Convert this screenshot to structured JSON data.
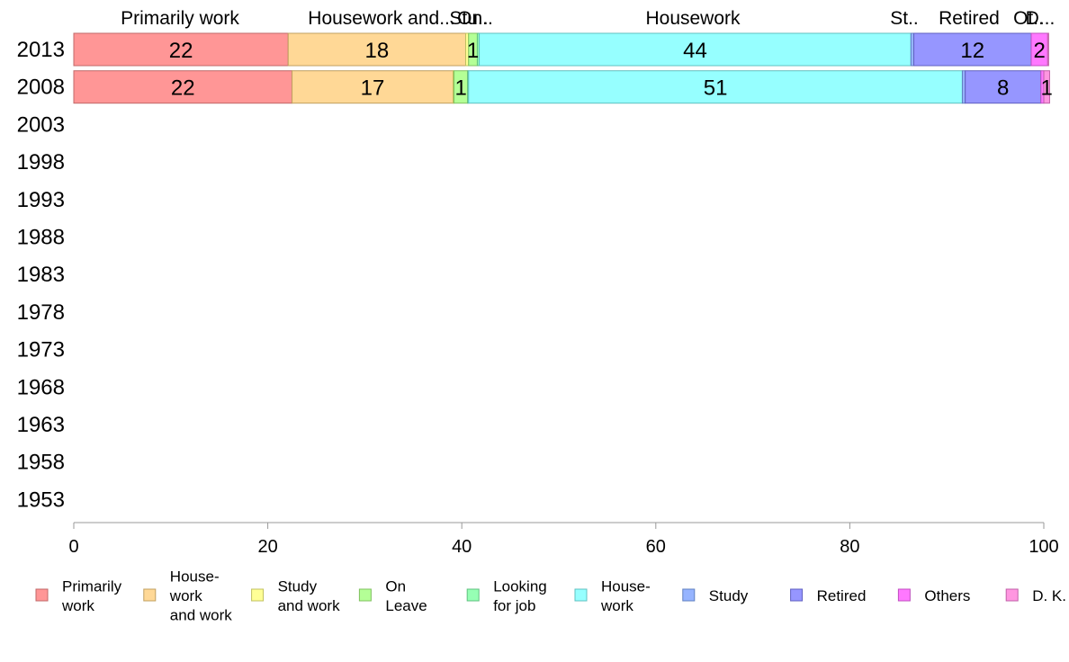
{
  "chart_data": {
    "type": "bar",
    "orientation": "horizontal",
    "stacked": true,
    "title": "",
    "xlabel": "",
    "ylabel": "",
    "xlim": [
      0,
      100
    ],
    "x_ticks": [
      "0",
      "20",
      "40",
      "60",
      "80",
      "100"
    ],
    "categories": [
      "2013",
      "2008",
      "2003",
      "1998",
      "1993",
      "1988",
      "1983",
      "1978",
      "1973",
      "1968",
      "1963",
      "1958",
      "1953"
    ],
    "top_labels": [
      "Primarily work",
      "Housework and...",
      "Stu..",
      "On..",
      "Housework",
      "St..",
      "Retired",
      "Ot..",
      "D..."
    ],
    "grid": false,
    "legend_position": "bottom",
    "series": [
      {
        "name": "Primarily work",
        "legend_label": "Primarily\nwork",
        "color": "#ff9696",
        "stroke": "#c06868",
        "values": [
          22.1,
          22.5,
          null,
          null,
          null,
          null,
          null,
          null,
          null,
          null,
          null,
          null,
          null
        ],
        "data_labels": [
          "22",
          "22",
          "",
          "",
          "",
          "",
          "",
          "",
          "",
          "",
          "",
          "",
          ""
        ]
      },
      {
        "name": "Housework and work",
        "legend_label": "House-\nwork\nand work",
        "color": "#ffd896",
        "stroke": "#c0a060",
        "values": [
          18.3,
          16.6,
          null,
          null,
          null,
          null,
          null,
          null,
          null,
          null,
          null,
          null,
          null
        ],
        "data_labels": [
          "18",
          "17",
          "",
          "",
          "",
          "",
          "",
          "",
          "",
          "",
          "",
          "",
          ""
        ]
      },
      {
        "name": "Study and work",
        "legend_label": "Study\nand work",
        "color": "#ffff96",
        "stroke": "#c0c060",
        "values": [
          0.3,
          0.1,
          null,
          null,
          null,
          null,
          null,
          null,
          null,
          null,
          null,
          null,
          null
        ],
        "data_labels": [
          "",
          "",
          "",
          "",
          "",
          "",
          "",
          "",
          "",
          "",
          "",
          "",
          ""
        ]
      },
      {
        "name": "On Leave",
        "legend_label": "On\nLeave",
        "color": "#b4ff96",
        "stroke": "#80c060",
        "values": [
          0.9,
          1.4,
          null,
          null,
          null,
          null,
          null,
          null,
          null,
          null,
          null,
          null,
          null
        ],
        "data_labels": [
          "1",
          "1",
          "",
          "",
          "",
          "",
          "",
          "",
          "",
          "",
          "",
          "",
          ""
        ]
      },
      {
        "name": "Looking for job",
        "legend_label": "Looking\nfor job",
        "color": "#96ffb4",
        "stroke": "#60c080",
        "values": [
          0.2,
          0.1,
          null,
          null,
          null,
          null,
          null,
          null,
          null,
          null,
          null,
          null,
          null
        ],
        "data_labels": [
          "",
          "",
          "",
          "",
          "",
          "",
          "",
          "",
          "",
          "",
          "",
          "",
          ""
        ]
      },
      {
        "name": "Housework",
        "legend_label": "House-\nwork",
        "color": "#96ffff",
        "stroke": "#60c0c0",
        "values": [
          44.5,
          50.9,
          null,
          null,
          null,
          null,
          null,
          null,
          null,
          null,
          null,
          null,
          null
        ],
        "data_labels": [
          "44",
          "51",
          "",
          "",
          "",
          "",
          "",
          "",
          "",
          "",
          "",
          "",
          ""
        ]
      },
      {
        "name": "Study",
        "legend_label": "Study",
        "color": "#96b4ff",
        "stroke": "#6080c0",
        "values": [
          0.3,
          0.3,
          null,
          null,
          null,
          null,
          null,
          null,
          null,
          null,
          null,
          null,
          null
        ],
        "data_labels": [
          "",
          "",
          "",
          "",
          "",
          "",
          "",
          "",
          "",
          "",
          "",
          "",
          ""
        ]
      },
      {
        "name": "Retired",
        "legend_label": "Retired",
        "color": "#9696ff",
        "stroke": "#6060c0",
        "values": [
          12.1,
          7.8,
          null,
          null,
          null,
          null,
          null,
          null,
          null,
          null,
          null,
          null,
          null
        ],
        "data_labels": [
          "12",
          "8",
          "",
          "",
          "",
          "",
          "",
          "",
          "",
          "",
          "",
          "",
          ""
        ]
      },
      {
        "name": "Others",
        "legend_label": "Others",
        "color": "#ff78ff",
        "stroke": "#c050c0",
        "values": [
          1.7,
          0.3,
          null,
          null,
          null,
          null,
          null,
          null,
          null,
          null,
          null,
          null,
          null
        ],
        "data_labels": [
          "2",
          "",
          "",
          "",
          "",
          "",
          "",
          "",
          "",
          "",
          "",
          "",
          ""
        ]
      },
      {
        "name": "D. K.",
        "legend_label": "D. K.",
        "color": "#ff96e0",
        "stroke": "#c060a8",
        "values": [
          0.1,
          0.6,
          null,
          null,
          null,
          null,
          null,
          null,
          null,
          null,
          null,
          null,
          null
        ],
        "data_labels": [
          "",
          "1",
          "",
          "",
          "",
          "",
          "",
          "",
          "",
          "",
          "",
          "",
          ""
        ]
      }
    ]
  }
}
